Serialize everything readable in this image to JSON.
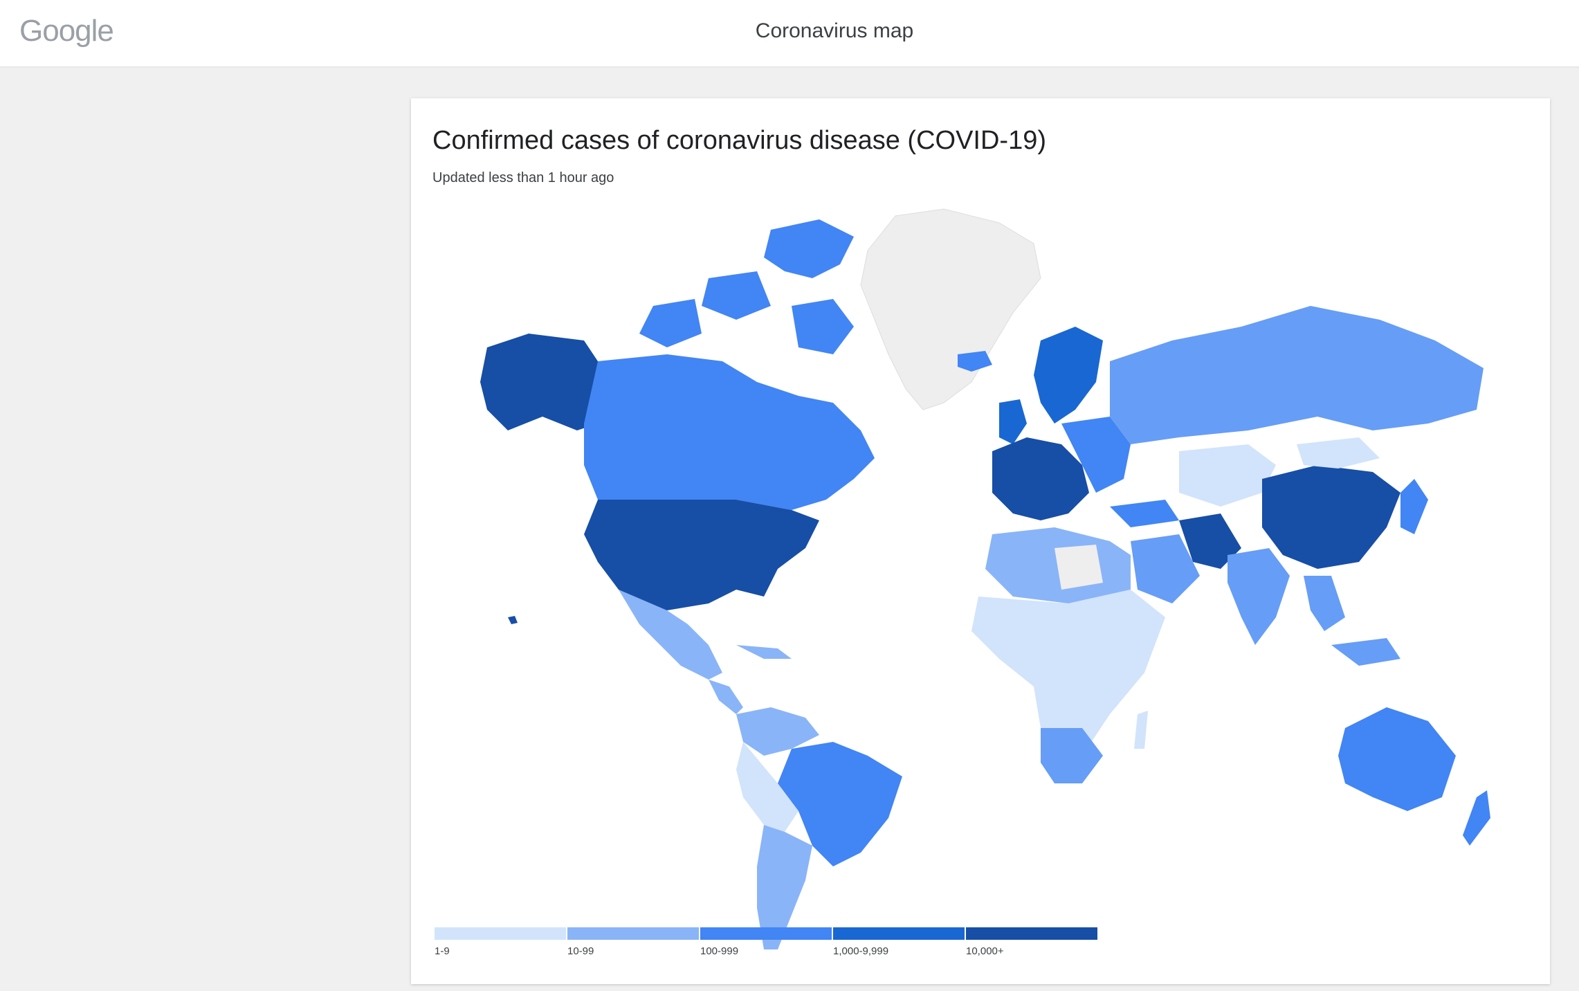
{
  "header": {
    "logo": "Google",
    "title": "Coronavirus map"
  },
  "card": {
    "title": "Confirmed cases of coronavirus disease (COVID-19)",
    "subtitle": "Updated less than 1 hour ago"
  },
  "legend": [
    {
      "label": "1-9",
      "color": "#d2e3fc"
    },
    {
      "label": "10-99",
      "color": "#8ab4f8"
    },
    {
      "label": "100-999",
      "color": "#4285f4"
    },
    {
      "label": "1,000-9,999",
      "color": "#1967d2"
    },
    {
      "label": "10,000+",
      "color": "#174ea6"
    }
  ],
  "colors": {
    "no_data": "#eeeeee",
    "border": "#ffffff"
  }
}
